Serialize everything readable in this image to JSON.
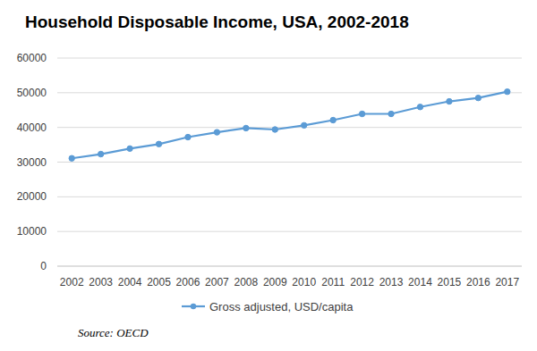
{
  "chart_data": {
    "type": "line",
    "title": "Household Disposable Income, USA, 2002-2018",
    "categories": [
      "2002",
      "2003",
      "2004",
      "2005",
      "2006",
      "2007",
      "2008",
      "2009",
      "2010",
      "2011",
      "2012",
      "2013",
      "2014",
      "2015",
      "2016",
      "2017"
    ],
    "series": [
      {
        "name": "Gross adjusted, USD/capita",
        "color": "#5b9bd5",
        "marker": "circle",
        "values": [
          31100,
          32300,
          33900,
          35200,
          37200,
          38600,
          39800,
          39400,
          40600,
          42100,
          43900,
          43900,
          45900,
          47500,
          48500,
          50300
        ]
      }
    ],
    "ylim": [
      0,
      60000
    ],
    "yticks": [
      0,
      10000,
      20000,
      30000,
      40000,
      50000,
      60000
    ],
    "grid": true,
    "legend": "bottom",
    "source": "Source: OECD"
  }
}
